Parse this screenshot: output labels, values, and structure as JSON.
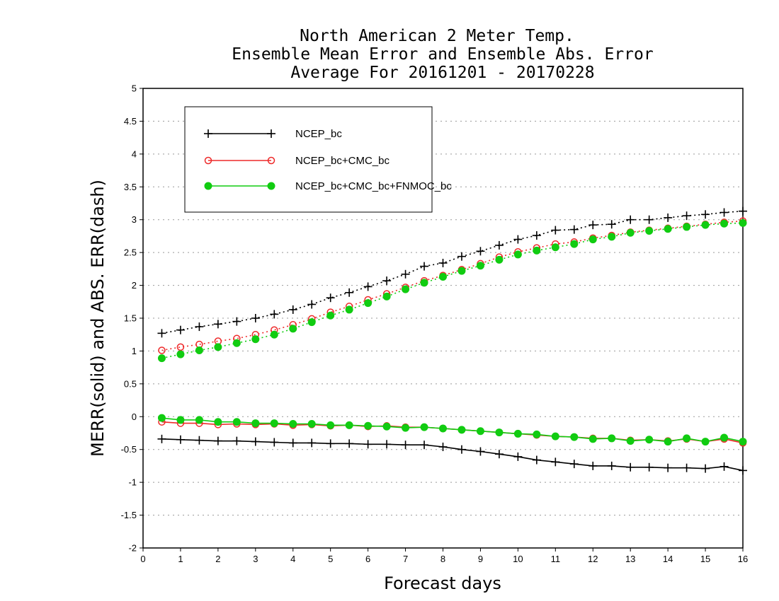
{
  "chart_data": {
    "type": "line",
    "title": [
      "North American 2 Meter Temp.",
      "Ensemble Mean Error and Ensemble Abs. Error",
      "Average For 20161201 - 20170228"
    ],
    "xlabel": "Forecast days",
    "ylabel": "MERR(solid) and ABS. ERR(dash)",
    "xlim": [
      0,
      16
    ],
    "ylim": [
      -2,
      5
    ],
    "xticks": [
      "0",
      "1",
      "2",
      "3",
      "4",
      "5",
      "6",
      "7",
      "8",
      "9",
      "10",
      "11",
      "12",
      "13",
      "14",
      "15",
      "16"
    ],
    "yticks": [
      "5",
      "4.5",
      "4",
      "3.5",
      "3",
      "2.5",
      "2",
      "1.5",
      "1",
      "0.5",
      "0",
      "-0.5",
      "-1",
      "-1.5",
      "-2"
    ],
    "grid": "horizontal dotted",
    "legend_position": "top-left",
    "x": [
      0.5,
      1,
      1.5,
      2,
      2.5,
      3,
      3.5,
      4,
      4.5,
      5,
      5.5,
      6,
      6.5,
      7,
      7.5,
      8,
      8.5,
      9,
      9.5,
      10,
      10.5,
      11,
      11.5,
      12,
      12.5,
      13,
      13.5,
      14,
      14.5,
      15,
      15.5,
      16
    ],
    "series": [
      {
        "name": "NCEP_bc",
        "color": "#000000",
        "marker": "plus",
        "merr": [
          -0.34,
          -0.35,
          -0.36,
          -0.37,
          -0.37,
          -0.38,
          -0.39,
          -0.4,
          -0.4,
          -0.41,
          -0.41,
          -0.42,
          -0.42,
          -0.43,
          -0.43,
          -0.46,
          -0.5,
          -0.53,
          -0.57,
          -0.61,
          -0.66,
          -0.69,
          -0.72,
          -0.75,
          -0.75,
          -0.77,
          -0.77,
          -0.78,
          -0.78,
          -0.79,
          -0.76,
          -0.82
        ],
        "abs_err": [
          1.27,
          1.32,
          1.37,
          1.41,
          1.45,
          1.5,
          1.56,
          1.63,
          1.71,
          1.81,
          1.89,
          1.98,
          2.07,
          2.17,
          2.29,
          2.34,
          2.44,
          2.52,
          2.61,
          2.7,
          2.76,
          2.84,
          2.85,
          2.92,
          2.93,
          3.0,
          3.0,
          3.03,
          3.06,
          3.08,
          3.11,
          3.13
        ]
      },
      {
        "name": "NCEP_bc+CMC_bc",
        "color": "#ee2a2a",
        "marker": "open-circle",
        "merr": [
          -0.08,
          -0.1,
          -0.1,
          -0.12,
          -0.11,
          -0.12,
          -0.11,
          -0.13,
          -0.12,
          -0.14,
          -0.13,
          -0.15,
          -0.14,
          -0.16,
          -0.16,
          -0.18,
          -0.2,
          -0.22,
          -0.24,
          -0.26,
          -0.28,
          -0.3,
          -0.31,
          -0.33,
          -0.33,
          -0.36,
          -0.35,
          -0.37,
          -0.34,
          -0.38,
          -0.34,
          -0.4
        ],
        "abs_err": [
          1.01,
          1.06,
          1.1,
          1.15,
          1.19,
          1.25,
          1.32,
          1.4,
          1.49,
          1.59,
          1.68,
          1.78,
          1.87,
          1.97,
          2.07,
          2.15,
          2.24,
          2.33,
          2.43,
          2.51,
          2.57,
          2.63,
          2.66,
          2.72,
          2.76,
          2.81,
          2.84,
          2.87,
          2.9,
          2.93,
          2.96,
          2.98
        ]
      },
      {
        "name": "NCEP_bc+CMC_bc+FNMOC_bc",
        "color": "#11cc11",
        "marker": "filled-circle",
        "merr": [
          -0.02,
          -0.05,
          -0.05,
          -0.08,
          -0.08,
          -0.1,
          -0.1,
          -0.11,
          -0.11,
          -0.13,
          -0.13,
          -0.14,
          -0.15,
          -0.17,
          -0.16,
          -0.18,
          -0.2,
          -0.22,
          -0.24,
          -0.26,
          -0.27,
          -0.3,
          -0.31,
          -0.34,
          -0.33,
          -0.37,
          -0.35,
          -0.38,
          -0.33,
          -0.38,
          -0.32,
          -0.38
        ],
        "abs_err": [
          0.89,
          0.95,
          1.01,
          1.06,
          1.12,
          1.18,
          1.25,
          1.34,
          1.44,
          1.54,
          1.63,
          1.73,
          1.83,
          1.94,
          2.04,
          2.13,
          2.22,
          2.3,
          2.39,
          2.47,
          2.53,
          2.58,
          2.63,
          2.7,
          2.74,
          2.8,
          2.83,
          2.86,
          2.89,
          2.92,
          2.94,
          2.95
        ]
      }
    ]
  }
}
